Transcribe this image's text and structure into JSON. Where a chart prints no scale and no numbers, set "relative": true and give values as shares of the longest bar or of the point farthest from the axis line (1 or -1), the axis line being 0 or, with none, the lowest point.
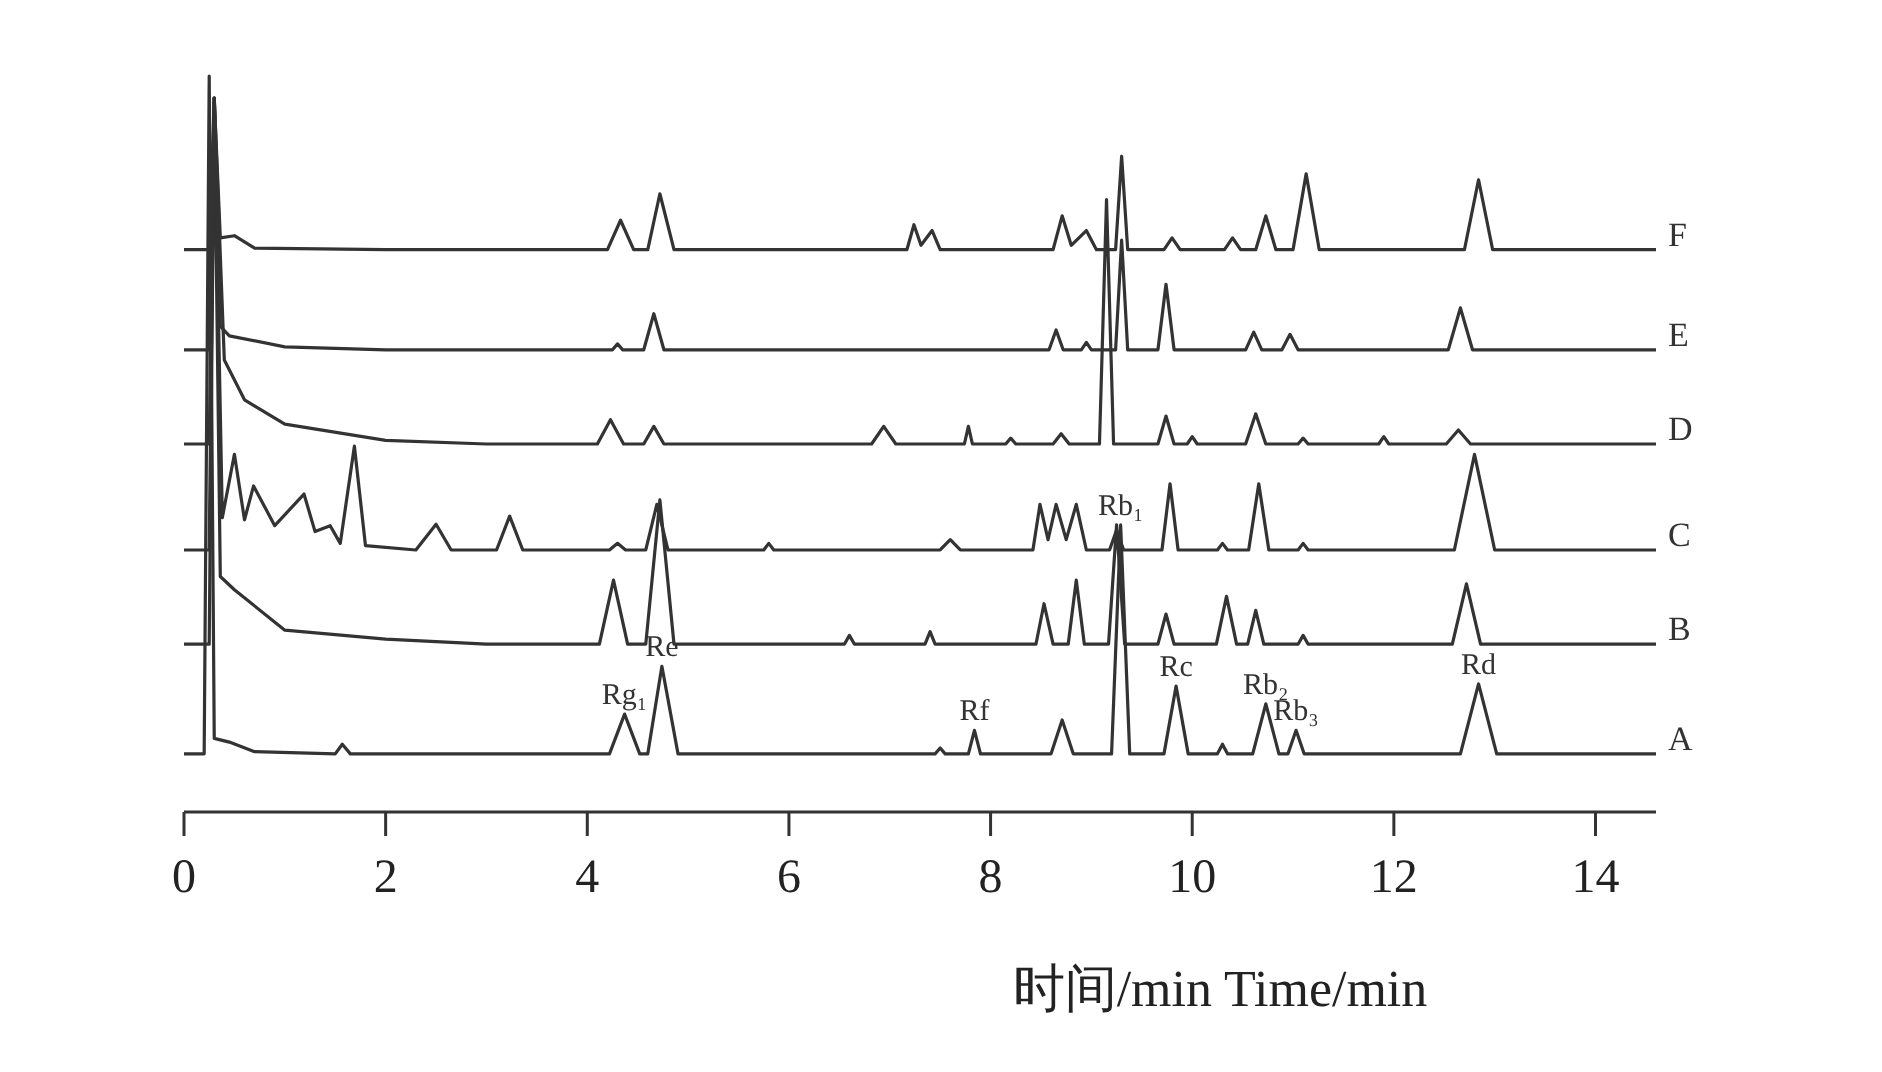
{
  "chart_data": {
    "type": "line",
    "relative": true,
    "xlabel": "时间/min  Time/min",
    "xlim": [
      0,
      14.6
    ],
    "xticks": [
      0,
      2,
      4,
      6,
      8,
      10,
      12,
      14
    ],
    "grid": false,
    "marker": "none",
    "line_style": "solid",
    "series": [
      {
        "name": "A",
        "color": "#333333",
        "x": [
          0,
          0.2,
          0.25,
          0.3,
          0.45,
          0.7,
          1.5,
          1.57,
          1.65,
          4.22,
          4.37,
          4.52,
          4.6,
          4.74,
          4.9,
          7.45,
          7.5,
          7.55,
          7.78,
          7.84,
          7.9,
          8.6,
          8.71,
          8.82,
          9.2,
          9.29,
          9.38,
          9.72,
          9.84,
          9.96,
          10.25,
          10.3,
          10.35,
          10.6,
          10.73,
          10.86,
          10.95,
          11.03,
          11.11,
          12.66,
          12.84,
          13.02,
          14.6
        ],
        "values": [
          0.079,
          0.079,
          1.0,
          0.1,
          0.095,
          0.082,
          0.079,
          0.092,
          0.079,
          0.079,
          0.133,
          0.079,
          0.079,
          0.198,
          0.079,
          0.079,
          0.087,
          0.079,
          0.079,
          0.111,
          0.079,
          0.079,
          0.125,
          0.079,
          0.079,
          0.39,
          0.079,
          0.079,
          0.171,
          0.079,
          0.079,
          0.092,
          0.079,
          0.079,
          0.147,
          0.079,
          0.079,
          0.111,
          0.079,
          0.079,
          0.174,
          0.079,
          0.079
        ]
      },
      {
        "name": "B",
        "color": "#333333",
        "x": [
          0,
          0.25,
          0.3,
          0.36,
          0.5,
          1.0,
          2.0,
          3.0,
          4.12,
          4.26,
          4.4,
          4.58,
          4.72,
          4.86,
          6.55,
          6.6,
          6.65,
          7.35,
          7.4,
          7.45,
          8.45,
          8.53,
          8.62,
          8.77,
          8.85,
          8.93,
          9.17,
          9.25,
          9.33,
          9.66,
          9.74,
          9.82,
          10.24,
          10.34,
          10.44,
          10.55,
          10.63,
          10.71,
          11.05,
          11.1,
          11.15,
          12.58,
          12.72,
          12.86,
          14.6
        ],
        "values": [
          0.228,
          0.228,
          0.97,
          0.32,
          0.302,
          0.247,
          0.235,
          0.228,
          0.228,
          0.315,
          0.228,
          0.228,
          0.424,
          0.228,
          0.228,
          0.24,
          0.228,
          0.228,
          0.245,
          0.228,
          0.228,
          0.283,
          0.228,
          0.228,
          0.315,
          0.228,
          0.228,
          0.39,
          0.228,
          0.228,
          0.269,
          0.228,
          0.228,
          0.293,
          0.228,
          0.228,
          0.274,
          0.228,
          0.228,
          0.24,
          0.228,
          0.228,
          0.31,
          0.228,
          0.228
        ]
      },
      {
        "name": "C",
        "color": "#333333",
        "x": [
          0,
          0.25,
          0.3,
          0.38,
          0.5,
          0.6,
          0.69,
          0.9,
          1.19,
          1.3,
          1.45,
          1.55,
          1.69,
          1.8,
          2.3,
          2.5,
          2.65,
          3.1,
          3.23,
          3.36,
          4.22,
          4.3,
          4.38,
          4.58,
          4.69,
          4.8,
          5.75,
          5.8,
          5.85,
          7.5,
          7.6,
          7.7,
          8.42,
          8.49,
          8.57,
          8.65,
          8.75,
          8.85,
          8.95,
          9.18,
          9.25,
          9.32,
          9.7,
          9.78,
          9.86,
          10.25,
          10.3,
          10.35,
          10.56,
          10.66,
          10.76,
          11.05,
          11.1,
          11.15,
          12.6,
          12.8,
          13.0,
          14.6
        ],
        "values": [
          0.356,
          0.356,
          0.97,
          0.4,
          0.486,
          0.397,
          0.443,
          0.389,
          0.432,
          0.381,
          0.389,
          0.365,
          0.497,
          0.362,
          0.356,
          0.391,
          0.356,
          0.356,
          0.402,
          0.356,
          0.356,
          0.365,
          0.356,
          0.356,
          0.418,
          0.356,
          0.356,
          0.365,
          0.356,
          0.356,
          0.37,
          0.356,
          0.356,
          0.418,
          0.37,
          0.418,
          0.37,
          0.418,
          0.356,
          0.356,
          0.383,
          0.356,
          0.356,
          0.446,
          0.356,
          0.356,
          0.365,
          0.356,
          0.356,
          0.446,
          0.356,
          0.356,
          0.365,
          0.356,
          0.356,
          0.486,
          0.356,
          0.356
        ]
      },
      {
        "name": "D",
        "color": "#333333",
        "x": [
          0,
          0.25,
          0.3,
          0.4,
          0.6,
          1.0,
          2.0,
          3.0,
          4.1,
          4.23,
          4.36,
          4.56,
          4.66,
          4.76,
          6.82,
          6.94,
          7.06,
          7.74,
          7.78,
          7.82,
          8.15,
          8.2,
          8.25,
          8.62,
          8.7,
          8.78,
          9.08,
          9.15,
          9.22,
          9.66,
          9.74,
          9.82,
          9.95,
          10.0,
          10.05,
          10.53,
          10.63,
          10.73,
          11.05,
          11.1,
          11.15,
          11.85,
          11.9,
          11.95,
          12.52,
          12.64,
          12.76,
          14.6
        ],
        "values": [
          0.5,
          0.5,
          0.97,
          0.614,
          0.56,
          0.527,
          0.505,
          0.5,
          0.5,
          0.533,
          0.5,
          0.5,
          0.524,
          0.5,
          0.5,
          0.524,
          0.5,
          0.5,
          0.524,
          0.5,
          0.5,
          0.508,
          0.5,
          0.5,
          0.514,
          0.5,
          0.5,
          0.832,
          0.5,
          0.5,
          0.538,
          0.5,
          0.5,
          0.51,
          0.5,
          0.5,
          0.541,
          0.5,
          0.5,
          0.508,
          0.5,
          0.5,
          0.51,
          0.5,
          0.5,
          0.519,
          0.5,
          0.5
        ]
      },
      {
        "name": "E",
        "color": "#333333",
        "x": [
          0,
          0.25,
          0.3,
          0.36,
          0.45,
          1.0,
          2.0,
          4.25,
          4.3,
          4.35,
          4.56,
          4.66,
          4.76,
          8.58,
          8.65,
          8.72,
          8.9,
          8.95,
          9.0,
          9.24,
          9.3,
          9.36,
          9.66,
          9.74,
          9.82,
          10.53,
          10.61,
          10.69,
          10.89,
          10.97,
          11.05,
          12.54,
          12.66,
          12.78,
          14.6
        ],
        "values": [
          0.628,
          0.628,
          0.97,
          0.66,
          0.647,
          0.632,
          0.628,
          0.628,
          0.636,
          0.628,
          0.628,
          0.677,
          0.628,
          0.628,
          0.655,
          0.628,
          0.628,
          0.638,
          0.628,
          0.628,
          0.777,
          0.628,
          0.628,
          0.717,
          0.628,
          0.628,
          0.652,
          0.628,
          0.628,
          0.649,
          0.628,
          0.628,
          0.685,
          0.628,
          0.628
        ]
      },
      {
        "name": "F",
        "color": "#333333",
        "x": [
          0,
          0.25,
          0.3,
          0.36,
          0.5,
          0.7,
          2.0,
          4.2,
          4.33,
          4.46,
          4.6,
          4.72,
          4.86,
          7.17,
          7.24,
          7.31,
          7.42,
          7.5,
          8.62,
          8.71,
          8.8,
          8.95,
          9.05,
          9.24,
          9.3,
          9.36,
          9.72,
          9.8,
          9.88,
          10.32,
          10.4,
          10.48,
          10.63,
          10.73,
          10.83,
          11.0,
          11.13,
          11.26,
          12.7,
          12.84,
          12.98,
          14.6
        ],
        "values": [
          0.764,
          0.764,
          0.97,
          0.78,
          0.783,
          0.766,
          0.764,
          0.764,
          0.804,
          0.764,
          0.764,
          0.84,
          0.764,
          0.764,
          0.798,
          0.77,
          0.79,
          0.764,
          0.764,
          0.81,
          0.77,
          0.79,
          0.764,
          0.764,
          0.891,
          0.764,
          0.764,
          0.78,
          0.764,
          0.764,
          0.78,
          0.764,
          0.764,
          0.81,
          0.764,
          0.764,
          0.867,
          0.764,
          0.764,
          0.859,
          0.764,
          0.764
        ]
      }
    ],
    "annotations": [
      {
        "text": "Rg₁",
        "x": 4.37,
        "y": 0.133
      },
      {
        "text": "Re",
        "x": 4.74,
        "y": 0.198
      },
      {
        "text": "Rf",
        "x": 7.84,
        "y": 0.111
      },
      {
        "text": "Rb₁",
        "x": 9.29,
        "y": 0.39
      },
      {
        "text": "Rc",
        "x": 9.84,
        "y": 0.171
      },
      {
        "text": "Rb₂",
        "x": 10.73,
        "y": 0.147
      },
      {
        "text": "Rb₃",
        "x": 11.03,
        "y": 0.111
      },
      {
        "text": "Rd",
        "x": 12.84,
        "y": 0.174
      }
    ]
  }
}
